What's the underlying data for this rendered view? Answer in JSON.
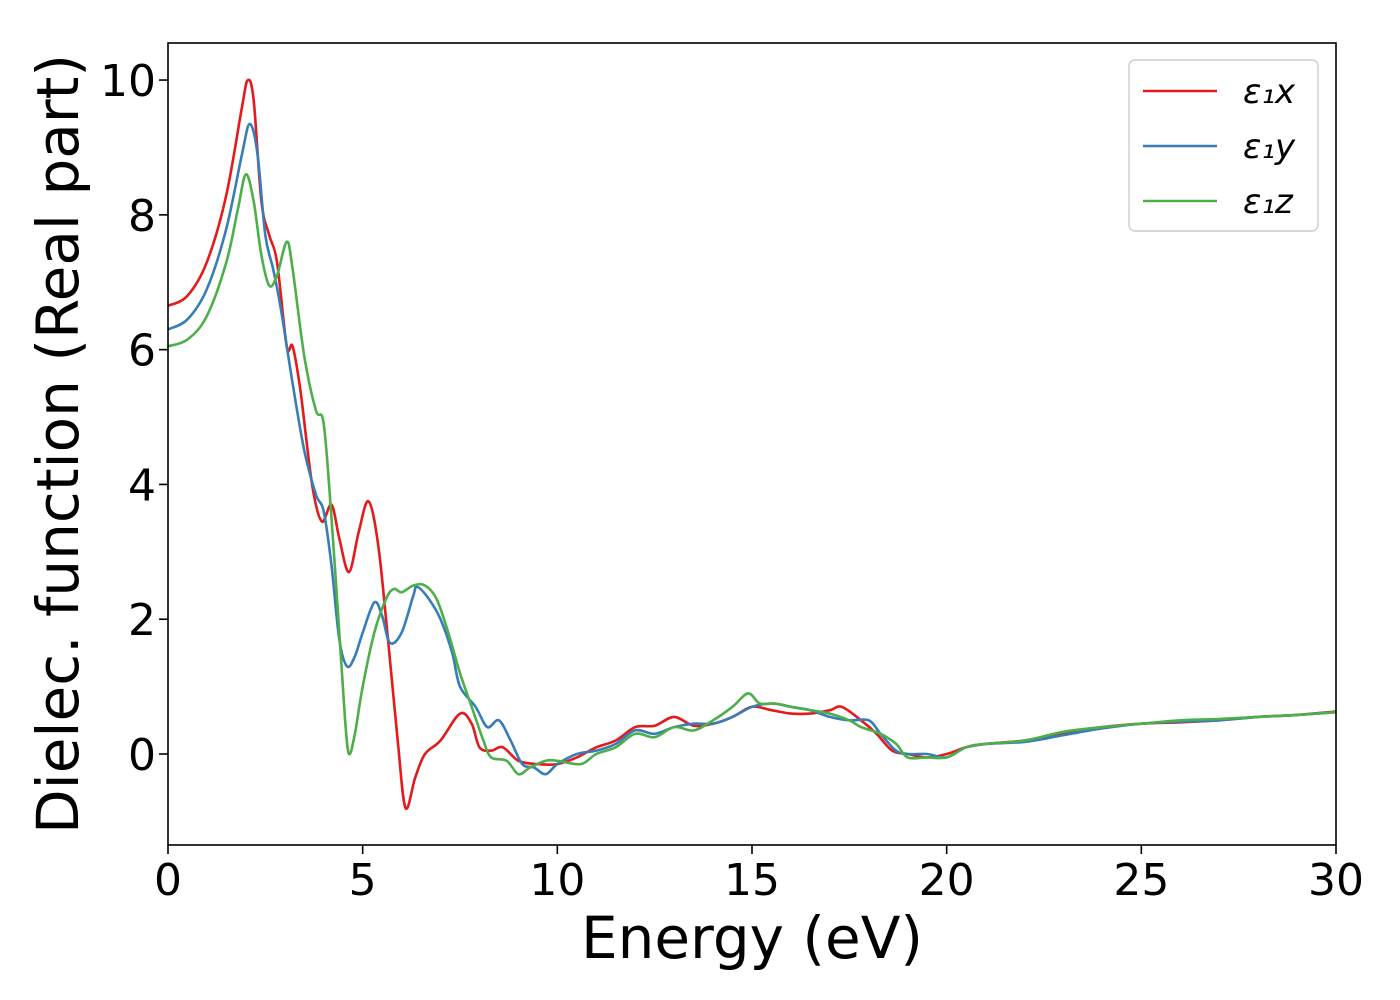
{
  "chart_data": {
    "type": "line",
    "xlabel": "Energy (eV)",
    "ylabel": "Dielec. function (Real part)",
    "xlim": [
      0,
      30
    ],
    "ylim": [
      -1.35,
      10.55
    ],
    "xticks": [
      0,
      5,
      10,
      15,
      20,
      25,
      30
    ],
    "yticks": [
      0,
      2,
      4,
      6,
      8,
      10
    ],
    "grid": false,
    "legend_position": "upper-right",
    "series": [
      {
        "name": "ε₁x",
        "color": "#e41a1c",
        "points": [
          [
            0.0,
            6.65
          ],
          [
            0.5,
            6.8
          ],
          [
            1.0,
            7.3
          ],
          [
            1.5,
            8.3
          ],
          [
            1.9,
            9.6
          ],
          [
            2.05,
            10.0
          ],
          [
            2.2,
            9.7
          ],
          [
            2.4,
            8.2
          ],
          [
            2.6,
            7.7
          ],
          [
            2.8,
            7.3
          ],
          [
            3.05,
            6.05
          ],
          [
            3.2,
            6.05
          ],
          [
            3.4,
            5.4
          ],
          [
            3.7,
            4.0
          ],
          [
            3.95,
            3.45
          ],
          [
            4.2,
            3.7
          ],
          [
            4.4,
            3.2
          ],
          [
            4.65,
            2.7
          ],
          [
            4.9,
            3.3
          ],
          [
            5.15,
            3.75
          ],
          [
            5.4,
            3.1
          ],
          [
            5.65,
            1.7
          ],
          [
            5.9,
            0.2
          ],
          [
            6.1,
            -0.8
          ],
          [
            6.35,
            -0.35
          ],
          [
            6.6,
            0.0
          ],
          [
            7.0,
            0.2
          ],
          [
            7.5,
            0.6
          ],
          [
            7.8,
            0.45
          ],
          [
            8.0,
            0.1
          ],
          [
            8.3,
            0.05
          ],
          [
            8.6,
            0.1
          ],
          [
            9.0,
            -0.1
          ],
          [
            9.5,
            -0.15
          ],
          [
            10.0,
            -0.15
          ],
          [
            10.5,
            -0.05
          ],
          [
            11.0,
            0.1
          ],
          [
            11.5,
            0.2
          ],
          [
            12.0,
            0.4
          ],
          [
            12.5,
            0.42
          ],
          [
            13.0,
            0.55
          ],
          [
            13.5,
            0.42
          ],
          [
            14.0,
            0.45
          ],
          [
            14.5,
            0.55
          ],
          [
            15.0,
            0.7
          ],
          [
            15.5,
            0.65
          ],
          [
            16.0,
            0.6
          ],
          [
            16.5,
            0.6
          ],
          [
            17.0,
            0.65
          ],
          [
            17.3,
            0.7
          ],
          [
            17.8,
            0.5
          ],
          [
            18.2,
            0.3
          ],
          [
            18.6,
            0.05
          ],
          [
            19.0,
            0.0
          ],
          [
            19.5,
            -0.05
          ],
          [
            20.0,
            0.0
          ],
          [
            20.5,
            0.1
          ],
          [
            21.0,
            0.15
          ],
          [
            22.0,
            0.2
          ],
          [
            23.0,
            0.3
          ],
          [
            24.0,
            0.4
          ],
          [
            25.0,
            0.45
          ],
          [
            26.0,
            0.47
          ],
          [
            27.0,
            0.5
          ],
          [
            28.0,
            0.55
          ],
          [
            29.0,
            0.58
          ],
          [
            30.0,
            0.63
          ]
        ]
      },
      {
        "name": "ε₁y",
        "color": "#377eb8",
        "points": [
          [
            0.0,
            6.3
          ],
          [
            0.5,
            6.45
          ],
          [
            1.0,
            6.9
          ],
          [
            1.5,
            7.8
          ],
          [
            1.9,
            8.9
          ],
          [
            2.1,
            9.35
          ],
          [
            2.3,
            8.9
          ],
          [
            2.5,
            7.7
          ],
          [
            2.7,
            7.2
          ],
          [
            2.9,
            6.6
          ],
          [
            3.2,
            5.5
          ],
          [
            3.5,
            4.5
          ],
          [
            3.8,
            3.85
          ],
          [
            4.0,
            3.6
          ],
          [
            4.2,
            2.8
          ],
          [
            4.4,
            1.7
          ],
          [
            4.6,
            1.3
          ],
          [
            4.8,
            1.45
          ],
          [
            5.0,
            1.8
          ],
          [
            5.3,
            2.25
          ],
          [
            5.5,
            2.05
          ],
          [
            5.7,
            1.65
          ],
          [
            6.0,
            1.8
          ],
          [
            6.3,
            2.35
          ],
          [
            6.4,
            2.48
          ],
          [
            6.7,
            2.3
          ],
          [
            7.0,
            2.0
          ],
          [
            7.3,
            1.5
          ],
          [
            7.5,
            1.0
          ],
          [
            7.9,
            0.7
          ],
          [
            8.2,
            0.4
          ],
          [
            8.5,
            0.5
          ],
          [
            8.8,
            0.2
          ],
          [
            9.1,
            -0.15
          ],
          [
            9.4,
            -0.2
          ],
          [
            9.7,
            -0.3
          ],
          [
            10.0,
            -0.15
          ],
          [
            10.5,
            0.0
          ],
          [
            11.0,
            0.05
          ],
          [
            11.5,
            0.15
          ],
          [
            12.0,
            0.35
          ],
          [
            12.5,
            0.3
          ],
          [
            13.0,
            0.4
          ],
          [
            13.5,
            0.45
          ],
          [
            14.0,
            0.45
          ],
          [
            14.5,
            0.55
          ],
          [
            15.0,
            0.7
          ],
          [
            15.5,
            0.75
          ],
          [
            16.0,
            0.7
          ],
          [
            16.5,
            0.65
          ],
          [
            17.0,
            0.55
          ],
          [
            17.5,
            0.5
          ],
          [
            18.0,
            0.5
          ],
          [
            18.3,
            0.3
          ],
          [
            18.7,
            0.05
          ],
          [
            19.0,
            0.0
          ],
          [
            19.5,
            0.0
          ],
          [
            20.0,
            -0.05
          ],
          [
            20.5,
            0.1
          ],
          [
            21.0,
            0.15
          ],
          [
            22.0,
            0.18
          ],
          [
            23.0,
            0.28
          ],
          [
            24.0,
            0.38
          ],
          [
            25.0,
            0.45
          ],
          [
            26.0,
            0.48
          ],
          [
            27.0,
            0.5
          ],
          [
            28.0,
            0.55
          ],
          [
            29.0,
            0.58
          ],
          [
            30.0,
            0.62
          ]
        ]
      },
      {
        "name": "ε₁z",
        "color": "#4daf4a",
        "points": [
          [
            0.0,
            6.05
          ],
          [
            0.5,
            6.15
          ],
          [
            1.0,
            6.5
          ],
          [
            1.5,
            7.3
          ],
          [
            1.8,
            8.1
          ],
          [
            2.0,
            8.6
          ],
          [
            2.2,
            8.2
          ],
          [
            2.4,
            7.4
          ],
          [
            2.6,
            6.95
          ],
          [
            2.8,
            7.1
          ],
          [
            3.05,
            7.6
          ],
          [
            3.2,
            7.2
          ],
          [
            3.5,
            5.9
          ],
          [
            3.8,
            5.1
          ],
          [
            4.0,
            4.9
          ],
          [
            4.2,
            3.5
          ],
          [
            4.4,
            1.8
          ],
          [
            4.55,
            0.5
          ],
          [
            4.65,
            0.0
          ],
          [
            4.8,
            0.3
          ],
          [
            5.0,
            1.0
          ],
          [
            5.3,
            1.8
          ],
          [
            5.6,
            2.3
          ],
          [
            5.8,
            2.45
          ],
          [
            6.0,
            2.4
          ],
          [
            6.3,
            2.5
          ],
          [
            6.6,
            2.5
          ],
          [
            6.9,
            2.3
          ],
          [
            7.2,
            1.8
          ],
          [
            7.5,
            1.2
          ],
          [
            7.8,
            0.7
          ],
          [
            8.1,
            0.2
          ],
          [
            8.3,
            -0.05
          ],
          [
            8.7,
            -0.1
          ],
          [
            9.0,
            -0.3
          ],
          [
            9.3,
            -0.2
          ],
          [
            9.7,
            -0.1
          ],
          [
            10.0,
            -0.1
          ],
          [
            10.6,
            -0.15
          ],
          [
            11.0,
            0.0
          ],
          [
            11.5,
            0.1
          ],
          [
            12.0,
            0.3
          ],
          [
            12.5,
            0.25
          ],
          [
            13.0,
            0.4
          ],
          [
            13.5,
            0.35
          ],
          [
            14.0,
            0.5
          ],
          [
            14.5,
            0.7
          ],
          [
            14.9,
            0.9
          ],
          [
            15.2,
            0.75
          ],
          [
            15.6,
            0.75
          ],
          [
            16.0,
            0.7
          ],
          [
            16.5,
            0.65
          ],
          [
            17.0,
            0.6
          ],
          [
            17.5,
            0.5
          ],
          [
            17.8,
            0.4
          ],
          [
            18.3,
            0.3
          ],
          [
            18.7,
            0.15
          ],
          [
            19.0,
            -0.05
          ],
          [
            19.5,
            -0.05
          ],
          [
            20.0,
            -0.05
          ],
          [
            20.5,
            0.1
          ],
          [
            21.0,
            0.15
          ],
          [
            22.0,
            0.2
          ],
          [
            23.0,
            0.33
          ],
          [
            24.0,
            0.4
          ],
          [
            25.0,
            0.45
          ],
          [
            26.0,
            0.5
          ],
          [
            27.0,
            0.52
          ],
          [
            28.0,
            0.55
          ],
          [
            29.0,
            0.58
          ],
          [
            30.0,
            0.62
          ]
        ]
      }
    ]
  }
}
